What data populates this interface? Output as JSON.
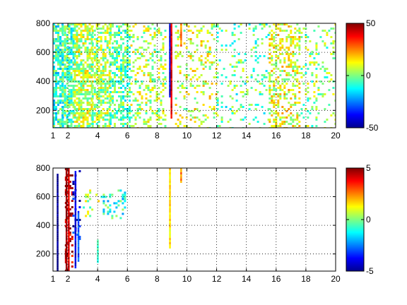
{
  "chart_data": [
    {
      "type": "heatmap",
      "title": "",
      "xlabel": "",
      "ylabel": "",
      "xlim": [
        1,
        20
      ],
      "ylim": [
        80,
        800
      ],
      "xticks": [
        "1",
        "2",
        "4",
        "6",
        "8",
        "10",
        "12",
        "14",
        "16",
        "18",
        "20"
      ],
      "xtick_values": [
        1,
        2,
        4,
        6,
        8,
        10,
        12,
        14,
        16,
        18,
        20
      ],
      "yticks": [
        "200",
        "400",
        "600",
        "800"
      ],
      "ytick_values": [
        200,
        400,
        600,
        800
      ],
      "grid": true,
      "colormap": "jet",
      "colorbar": {
        "min": -50,
        "max": 50,
        "ticks": [
          "-50",
          "0",
          "50"
        ],
        "tick_values": [
          -50,
          0,
          50
        ]
      },
      "bands": [
        {
          "x": [
            1.0,
            1.6
          ],
          "y": [
            80,
            800
          ],
          "value": -8,
          "density": 0.7
        },
        {
          "x": [
            1.6,
            2.4
          ],
          "y": [
            80,
            800
          ],
          "value": -5,
          "density": 0.75
        },
        {
          "x": [
            2.4,
            3.6
          ],
          "y": [
            80,
            800
          ],
          "value": 6,
          "density": 0.7
        },
        {
          "x": [
            3.6,
            4.8
          ],
          "y": [
            80,
            800
          ],
          "value": 3,
          "density": 0.6
        },
        {
          "x": [
            4.8,
            6.2
          ],
          "y": [
            80,
            800
          ],
          "value": -4,
          "density": 0.55
        },
        {
          "x": [
            6.2,
            8.6
          ],
          "y": [
            80,
            800
          ],
          "value": 5,
          "density": 0.28
        },
        {
          "x": [
            9.2,
            12.0
          ],
          "y": [
            80,
            800
          ],
          "value": 8,
          "density": 0.2
        },
        {
          "x": [
            12.0,
            15.5
          ],
          "y": [
            80,
            800
          ],
          "value": -3,
          "density": 0.14
        },
        {
          "x": [
            15.5,
            17.5
          ],
          "y": [
            80,
            800
          ],
          "value": 10,
          "density": 0.45
        },
        {
          "x": [
            17.5,
            20.0
          ],
          "y": [
            80,
            800
          ],
          "value": 2,
          "density": 0.16
        }
      ],
      "stripes": [
        {
          "x": 8.85,
          "y": [
            300,
            800
          ],
          "value": -40
        },
        {
          "x": 8.95,
          "y": [
            150,
            800
          ],
          "value": 40
        },
        {
          "x": 9.6,
          "y": [
            640,
            800
          ],
          "value": 25
        }
      ]
    },
    {
      "type": "heatmap",
      "title": "",
      "xlabel": "",
      "ylabel": "",
      "xlim": [
        1,
        20
      ],
      "ylim": [
        80,
        800
      ],
      "xticks": [
        "1",
        "2",
        "4",
        "6",
        "8",
        "10",
        "12",
        "14",
        "16",
        "18",
        "20"
      ],
      "xtick_values": [
        1,
        2,
        4,
        6,
        8,
        10,
        12,
        14,
        16,
        18,
        20
      ],
      "yticks": [
        "200",
        "400",
        "600",
        "800"
      ],
      "ytick_values": [
        200,
        400,
        600,
        800
      ],
      "grid": true,
      "colormap": "jet",
      "colorbar": {
        "min": -5,
        "max": 5,
        "ticks": [
          "-5",
          "0",
          "5"
        ],
        "tick_values": [
          -5,
          0,
          5
        ]
      },
      "bands": [
        {
          "x": [
            1.8,
            2.3
          ],
          "y": [
            80,
            800
          ],
          "value": 4.5,
          "density": 0.3
        },
        {
          "x": [
            2.3,
            2.8
          ],
          "y": [
            300,
            800
          ],
          "value": -4.0,
          "density": 0.22
        },
        {
          "x": [
            3.0,
            4.0
          ],
          "y": [
            450,
            650
          ],
          "value": 0.5,
          "density": 0.12
        },
        {
          "x": [
            4.2,
            5.8
          ],
          "y": [
            450,
            650
          ],
          "value": -1.0,
          "density": 0.3
        }
      ],
      "stripes": [
        {
          "x": 1.3,
          "y": [
            80,
            760
          ],
          "value": -5
        },
        {
          "x": 1.9,
          "y": [
            80,
            800
          ],
          "value": 5
        },
        {
          "x": 2.05,
          "y": [
            80,
            800
          ],
          "value": 4
        },
        {
          "x": 2.5,
          "y": [
            100,
            780
          ],
          "value": -4
        },
        {
          "x": 2.7,
          "y": [
            150,
            500
          ],
          "value": -3
        },
        {
          "x": 4.0,
          "y": [
            140,
            300
          ],
          "value": -0.5
        },
        {
          "x": 8.85,
          "y": [
            250,
            800
          ],
          "value": 1.5
        },
        {
          "x": 9.6,
          "y": [
            700,
            800
          ],
          "value": 2.5
        }
      ]
    }
  ]
}
